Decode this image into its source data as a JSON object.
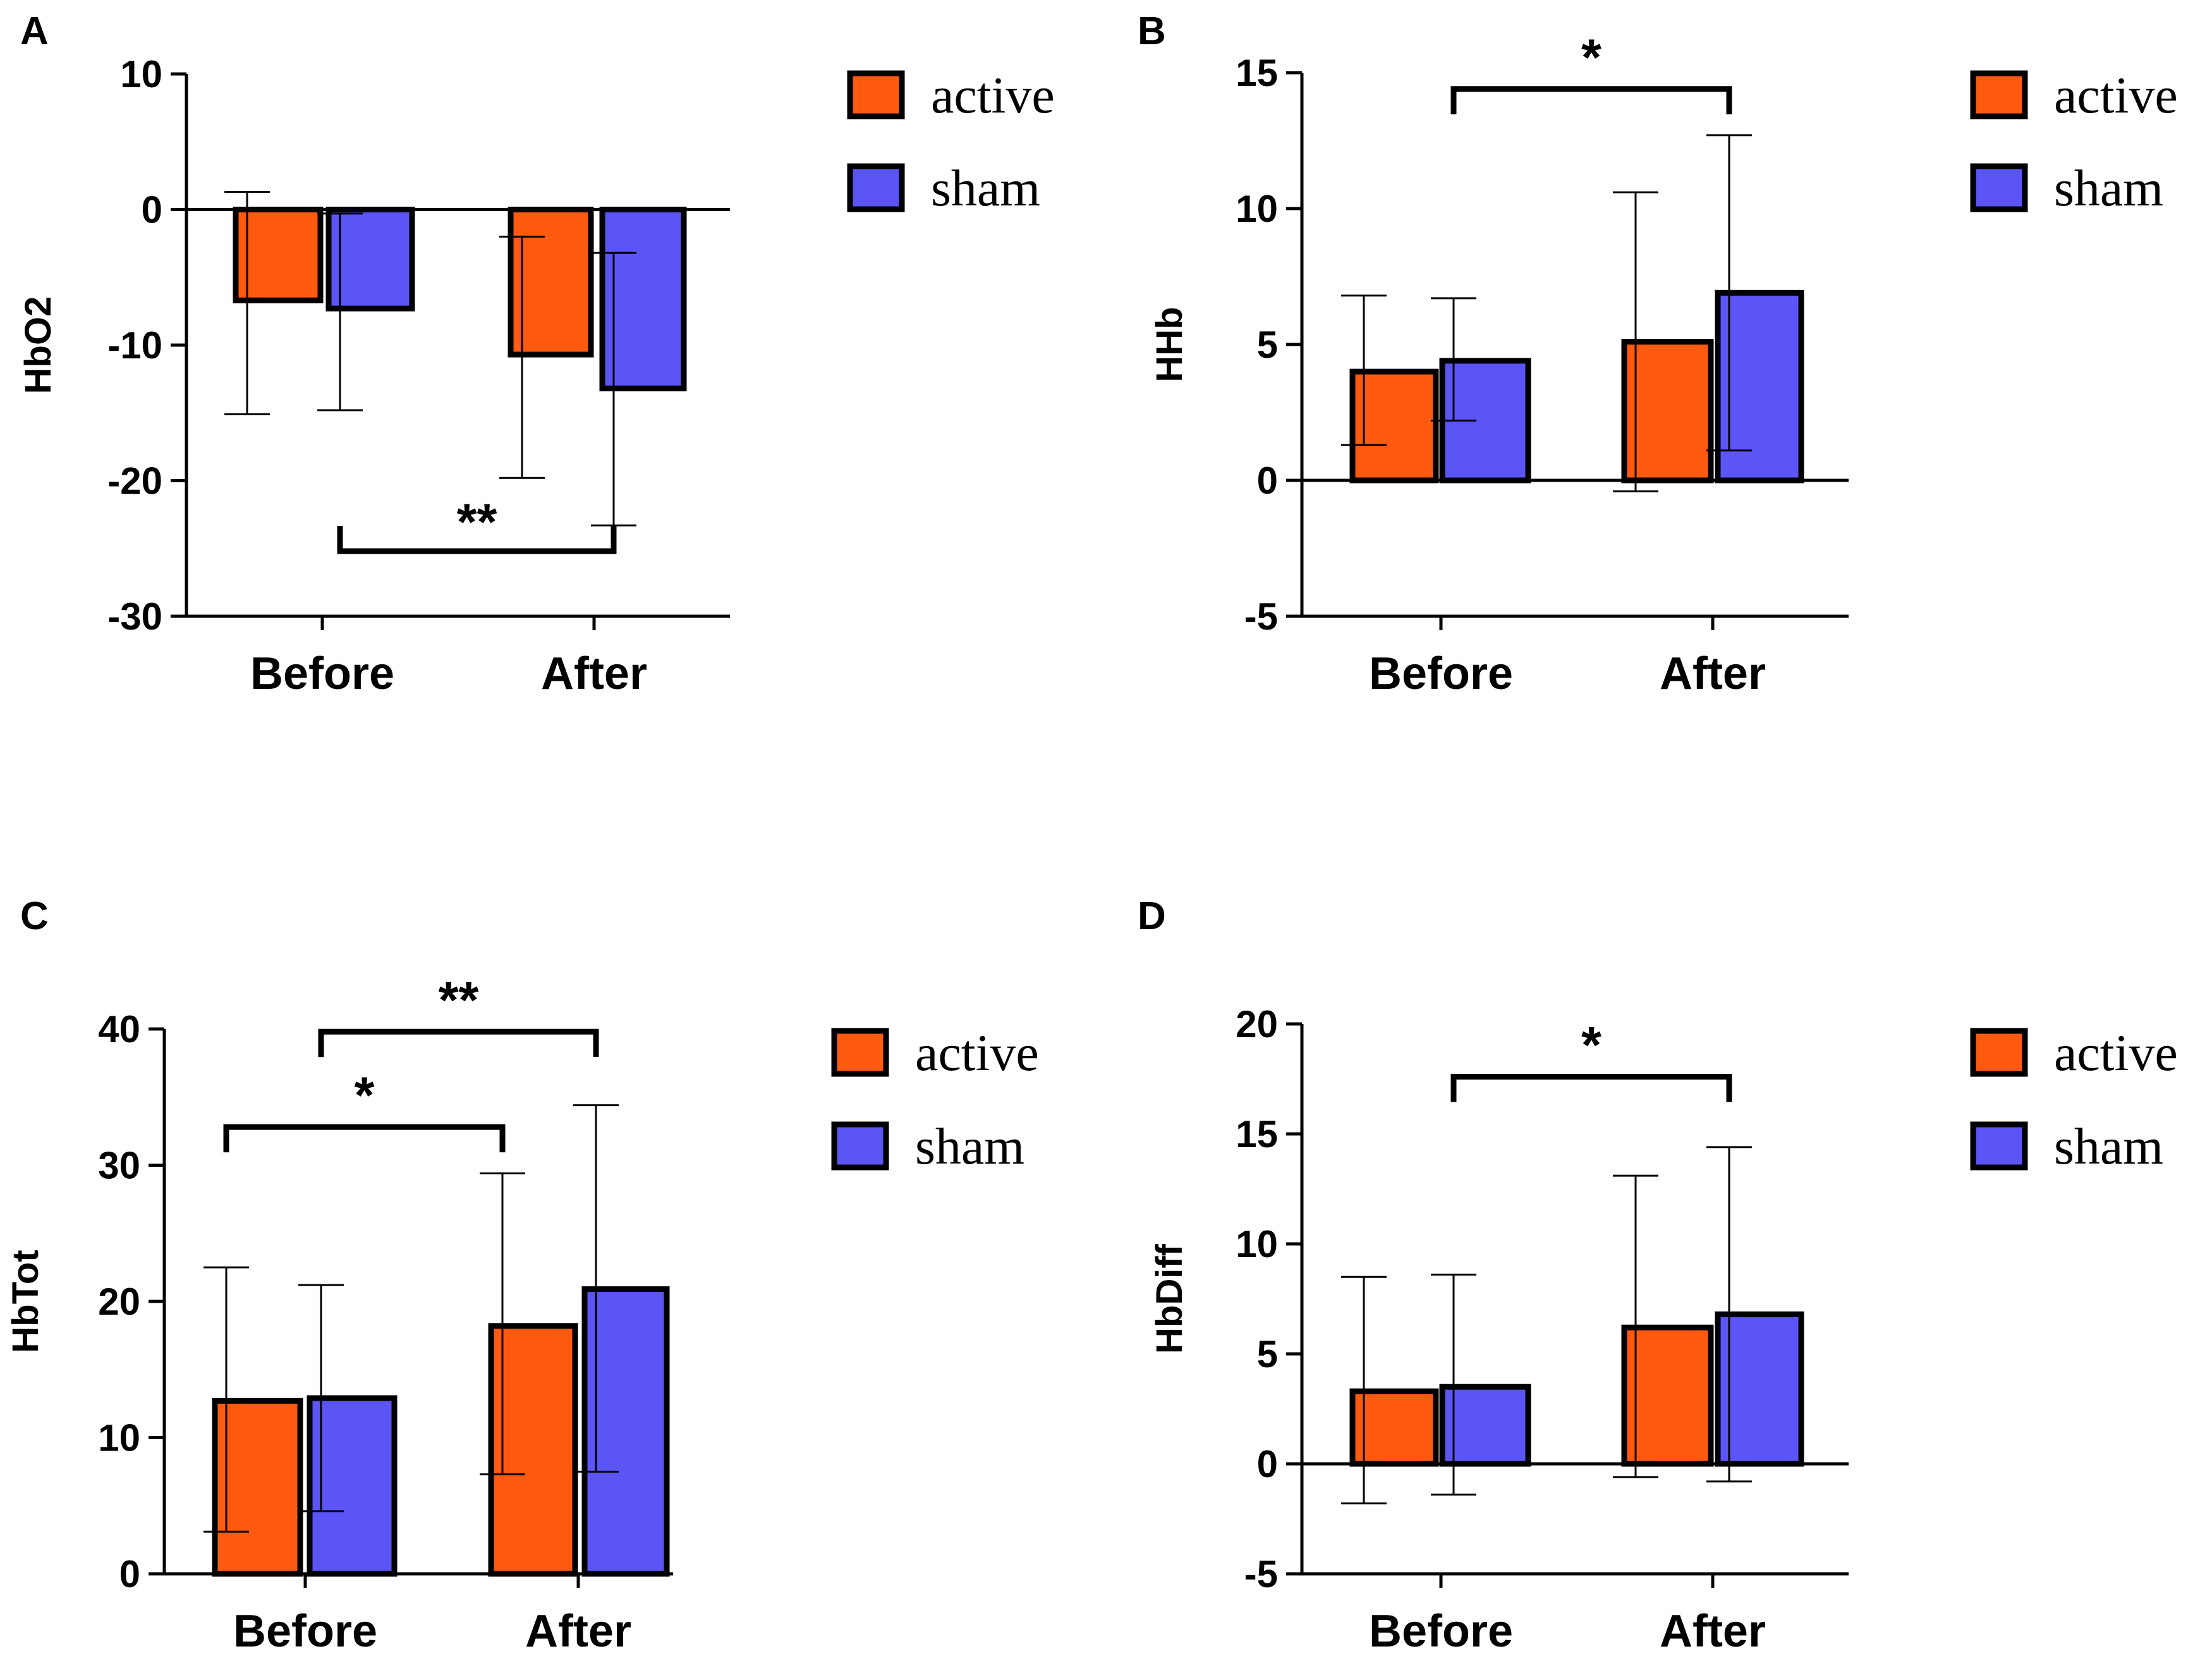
{
  "colors": {
    "active": "#ff5a10",
    "sham": "#5b55f5",
    "axis": "#000000"
  },
  "legend": {
    "active": "active",
    "sham": "sham"
  },
  "chart_data": [
    {
      "panel": "A",
      "type": "bar",
      "ylabel": "HbO2",
      "categories": [
        "Before",
        "After"
      ],
      "ylim": [
        -30,
        10
      ],
      "yticks": [
        10,
        0,
        -10,
        -20,
        -30
      ],
      "series": [
        {
          "name": "active",
          "values": [
            -6.7,
            -10.7
          ],
          "err_low": [
            -15.1,
            -19.8
          ],
          "err_high": [
            1.3,
            -2.0
          ]
        },
        {
          "name": "sham",
          "values": [
            -7.3,
            -13.2
          ],
          "err_low": [
            -14.8,
            -23.3
          ],
          "err_high": [
            -0.3,
            -3.2
          ]
        }
      ],
      "significance": [
        {
          "label": "**",
          "from": "Before-sham",
          "to": "After-sham",
          "y": -25.2
        }
      ]
    },
    {
      "panel": "B",
      "type": "bar",
      "ylabel": "HHb",
      "categories": [
        "Before",
        "After"
      ],
      "ylim": [
        -5,
        15
      ],
      "yticks": [
        15,
        10,
        5,
        0,
        -5
      ],
      "series": [
        {
          "name": "active",
          "values": [
            4.0,
            5.1
          ],
          "err_low": [
            1.3,
            -0.4
          ],
          "err_high": [
            6.8,
            10.6
          ]
        },
        {
          "name": "sham",
          "values": [
            4.4,
            6.9
          ],
          "err_low": [
            2.2,
            1.1
          ],
          "err_high": [
            6.7,
            12.7
          ]
        }
      ],
      "significance": [
        {
          "label": "*",
          "from": "Before-sham",
          "to": "After-sham",
          "y": 14.4
        }
      ]
    },
    {
      "panel": "C",
      "type": "bar",
      "ylabel": "HbTot",
      "categories": [
        "Before",
        "After"
      ],
      "ylim": [
        0,
        40
      ],
      "yticks": [
        40,
        30,
        20,
        10,
        0
      ],
      "series": [
        {
          "name": "active",
          "values": [
            12.7,
            18.2
          ],
          "err_low": [
            3.1,
            7.3
          ],
          "err_high": [
            22.5,
            29.4
          ]
        },
        {
          "name": "sham",
          "values": [
            12.9,
            20.9
          ],
          "err_low": [
            4.6,
            7.5
          ],
          "err_high": [
            21.2,
            34.4
          ]
        }
      ],
      "significance": [
        {
          "label": "*",
          "from": "Before-active",
          "to": "After-active",
          "y": 32.8
        },
        {
          "label": "**",
          "from": "Before-sham",
          "to": "After-sham",
          "y": 39.8
        }
      ]
    },
    {
      "panel": "D",
      "type": "bar",
      "ylabel": "HbDiff",
      "categories": [
        "Before",
        "After"
      ],
      "ylim": [
        -5,
        20
      ],
      "yticks": [
        20,
        15,
        10,
        5,
        0,
        -5
      ],
      "series": [
        {
          "name": "active",
          "values": [
            3.3,
            6.2
          ],
          "err_low": [
            -1.8,
            -0.6
          ],
          "err_high": [
            8.5,
            13.1
          ]
        },
        {
          "name": "sham",
          "values": [
            3.5,
            6.8
          ],
          "err_low": [
            -1.4,
            -0.8
          ],
          "err_high": [
            8.6,
            14.4
          ]
        }
      ],
      "significance": [
        {
          "label": "*",
          "from": "Before-sham",
          "to": "After-sham",
          "y": 17.6
        }
      ]
    }
  ]
}
